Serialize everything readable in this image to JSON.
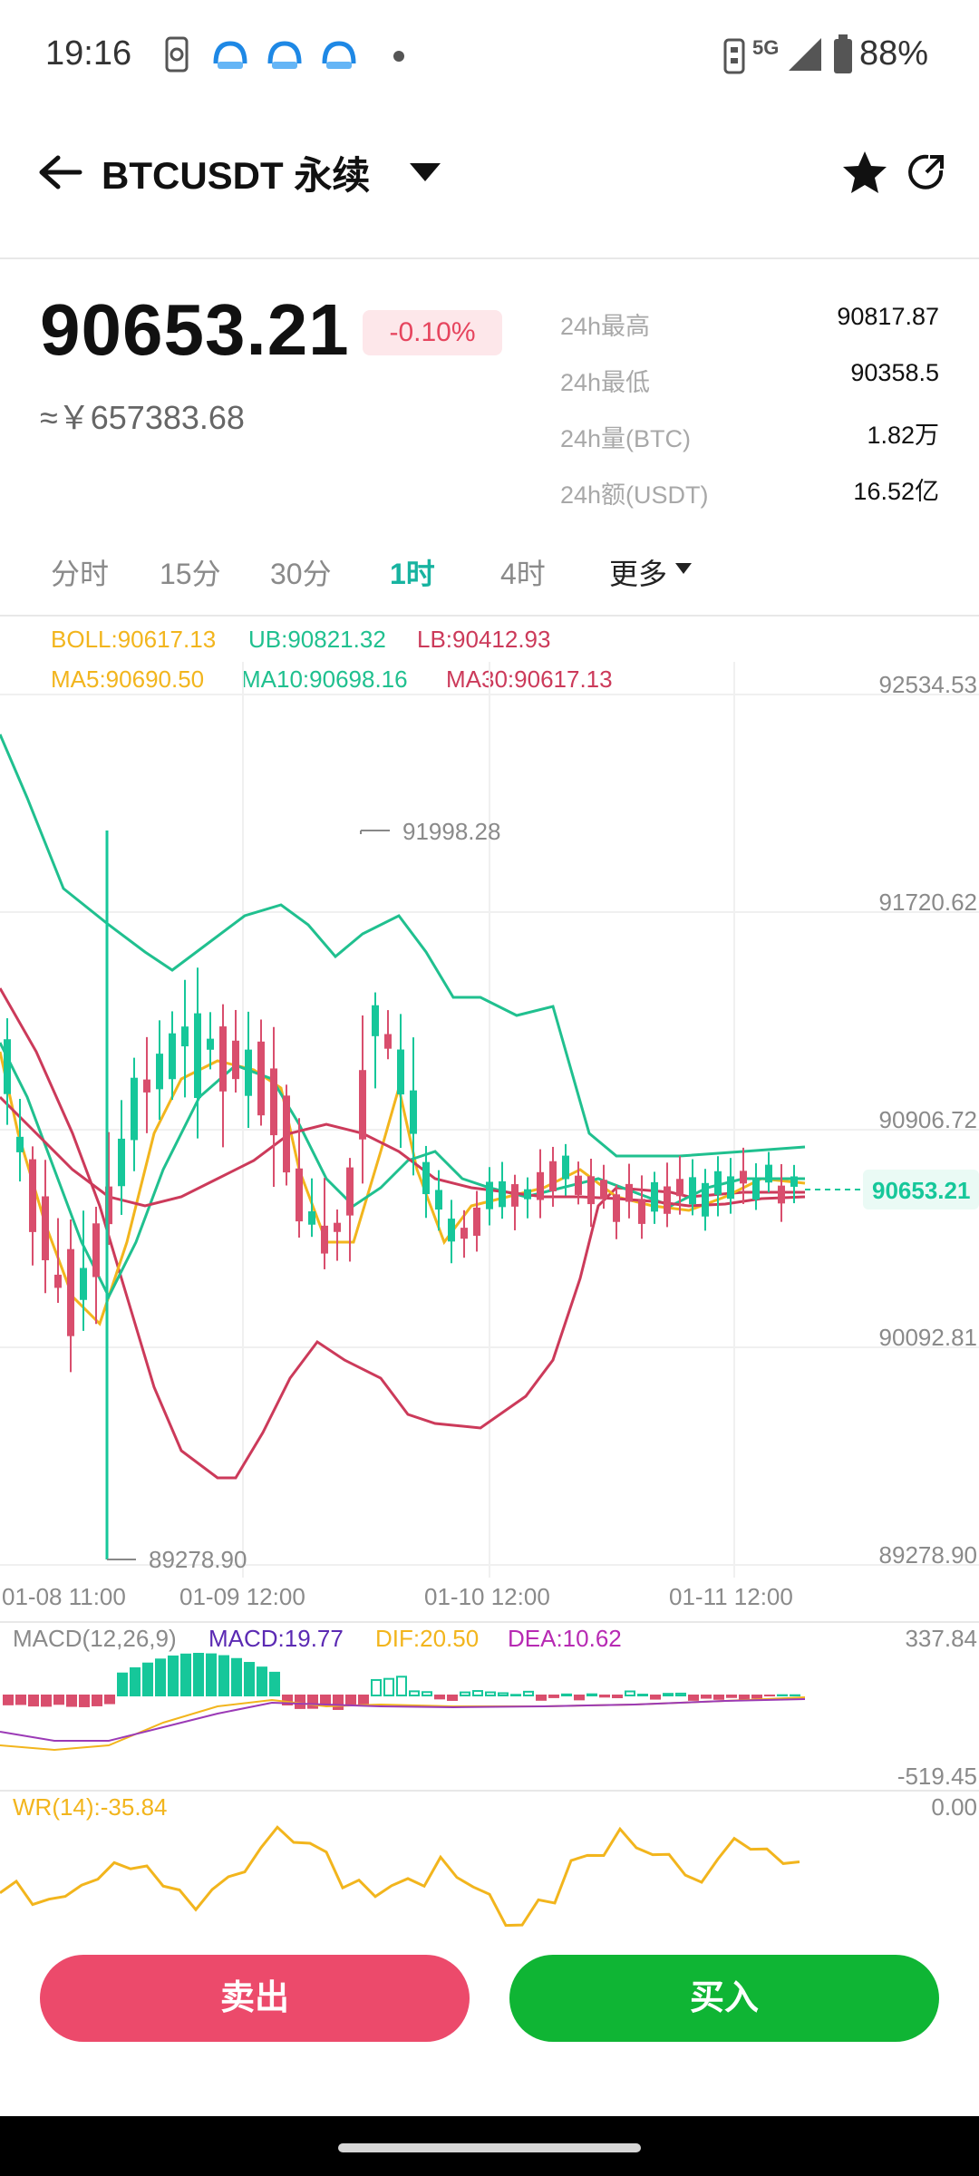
{
  "status_bar": {
    "time": "19:16",
    "network": "5G",
    "battery": "88%"
  },
  "header": {
    "symbol": "BTCUSDT 永续"
  },
  "ticker": {
    "last_price": "90653.21",
    "change_pct": "-0.10%",
    "cny_price": "≈￥657383.68",
    "stats": [
      {
        "label": "24h最高",
        "value": "90817.87"
      },
      {
        "label": "24h最低",
        "value": "90358.5"
      },
      {
        "label": "24h量(BTC)",
        "value": "1.82万"
      },
      {
        "label": "24h额(USDT)",
        "value": "16.52亿"
      }
    ]
  },
  "timeframes": [
    "分时",
    "15分",
    "30分",
    "1时",
    "4时",
    "更多"
  ],
  "active_timeframe": "1时",
  "indicators": {
    "boll": "BOLL:90617.13",
    "ub": "UB:90821.32",
    "lb": "LB:90412.93",
    "ma5": "MA5:90690.50",
    "ma10": "MA10:90698.16",
    "ma30": "MA30:90617.13",
    "macd_params": "MACD(12,26,9)",
    "macd": "MACD:19.77",
    "dif": "DIF:20.50",
    "dea": "DEA:10.62",
    "wr": "WR(14):-35.84"
  },
  "colors": {
    "up": "#16c79a",
    "down": "#d94e6d",
    "accent": "#17b3a0",
    "sell": "#ec4a6b",
    "buy": "#0fb534",
    "boll_line": "#f2b51d",
    "ub_line": "#20c08f",
    "lb_line": "#cc3a5a"
  },
  "chart_data": {
    "type": "candlestick",
    "y_ticks": [
      "92534.53",
      "91720.62",
      "90906.72",
      "90092.81",
      "89278.90"
    ],
    "ylim": [
      89278.9,
      92534.53
    ],
    "x_ticks": [
      "01-08 11:00",
      "01-09 12:00",
      "01-10 12:00",
      "01-11 12:00"
    ],
    "high_marker": "91998.28",
    "low_marker": "89278.90",
    "current_price_tag": "90653.21",
    "macd_axis": {
      "max": "337.84",
      "min": "-519.45"
    },
    "wr_axis": {
      "max": "0.00"
    },
    "candle_count": 64,
    "candles_sample_note": ""
  },
  "actions": {
    "sell": "卖出",
    "buy": "买入"
  }
}
